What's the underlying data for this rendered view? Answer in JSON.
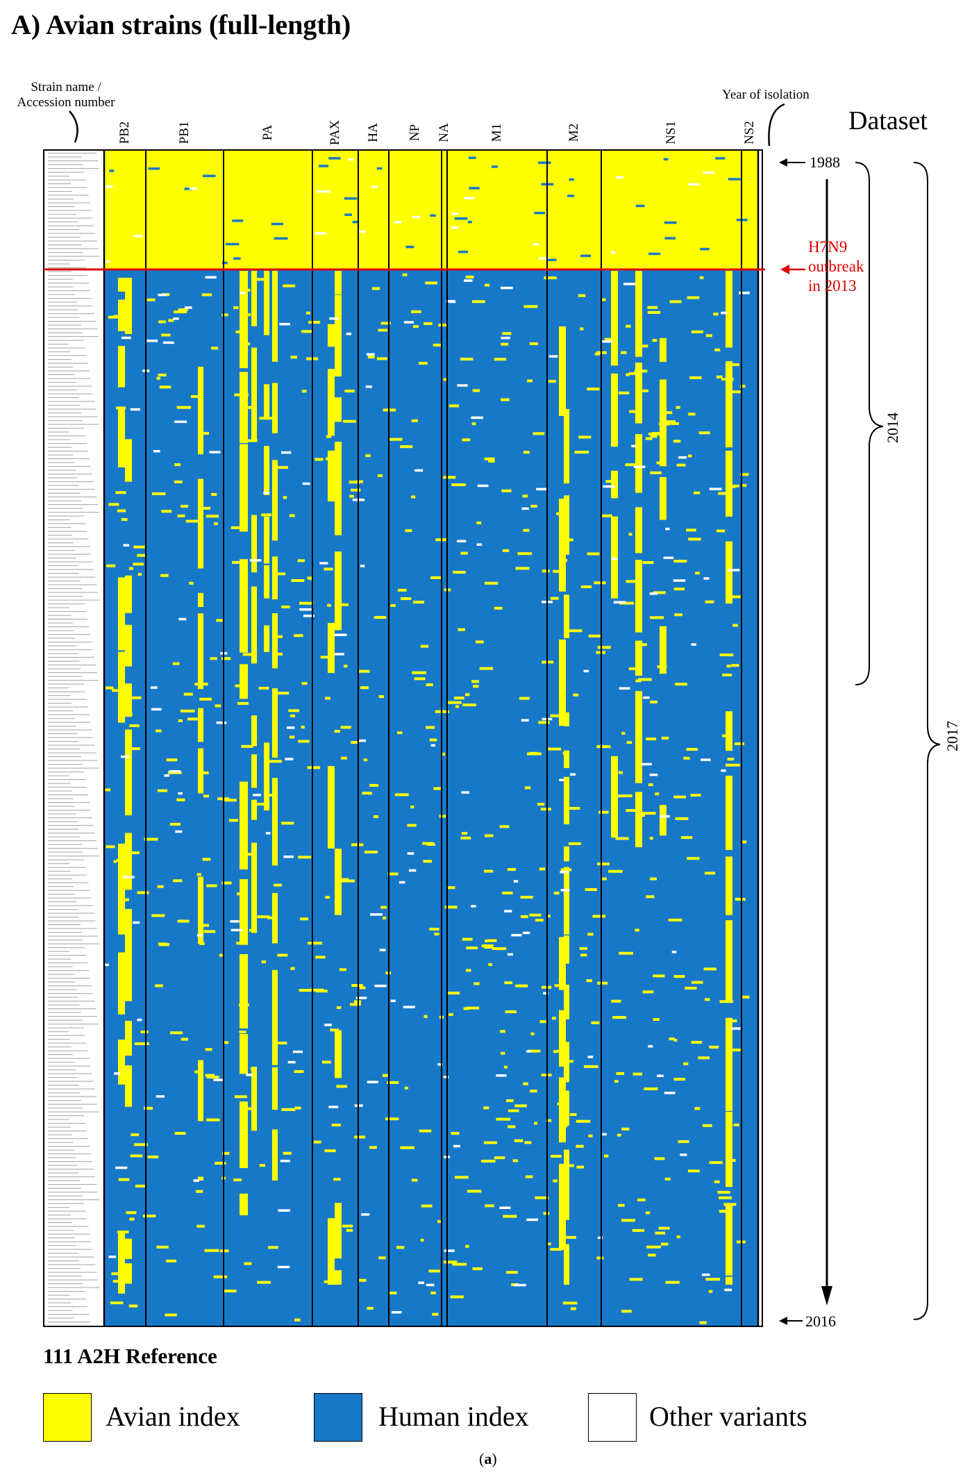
{
  "title": "A) Avian strains (full-length)",
  "headers": {
    "strain_line1": "Strain name /",
    "strain_line2": "Accession number",
    "year": "Year of isolation",
    "dataset": "Dataset"
  },
  "annotations": {
    "year_start": "1988",
    "year_end": "2016",
    "outbreak_line1": "H7N9",
    "outbreak_line2": "outbreak",
    "outbreak_line3": "in 2013",
    "bracket_2014": "2014",
    "bracket_2017": "2017"
  },
  "legend": {
    "title": "111 A2H Reference",
    "items": [
      {
        "label": "Avian index",
        "color": "#ffff00"
      },
      {
        "label": "Human index",
        "color": "#1878c8"
      },
      {
        "label": "Other variants",
        "color": "#ffffff"
      }
    ]
  },
  "caption": {
    "open": "(",
    "letter": "a",
    "close": ")"
  },
  "colors": {
    "avian": "#ffff00",
    "human": "#1878c8",
    "other": "#ffffff",
    "outbreak_line": "#e00000"
  },
  "chart_data": {
    "type": "heatmap",
    "genes": [
      "PB2",
      "PB1",
      "PA",
      "PAX",
      "HA",
      "NP",
      "NA",
      "M1",
      "M2",
      "NS1",
      "NS2"
    ],
    "rows_from_year": "1988",
    "rows_to_year": "2016",
    "pre_outbreak_block": "avian index majority (1988 to H7N9 outbreak in 2013)",
    "post_outbreak_block": "human index majority",
    "categories": [
      "Avian index",
      "Human index",
      "Other variants"
    ]
  }
}
